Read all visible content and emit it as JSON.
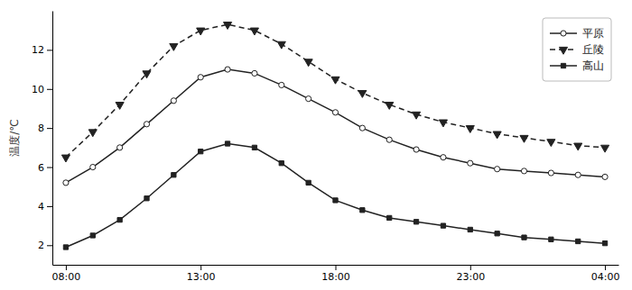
{
  "chart_data": {
    "type": "line",
    "ylabel": "温度/℃",
    "x": [
      0,
      1,
      2,
      3,
      4,
      5,
      6,
      7,
      8,
      9,
      10,
      11,
      12,
      13,
      14,
      15,
      16,
      17,
      18,
      19,
      20
    ],
    "xlim": [
      -0.5,
      20.5
    ],
    "xticks": [
      {
        "value": 0,
        "label": "08:00"
      },
      {
        "value": 5,
        "label": "13:00"
      },
      {
        "value": 10,
        "label": "18:00"
      },
      {
        "value": 15,
        "label": "23:00"
      },
      {
        "value": 20,
        "label": "04:00"
      }
    ],
    "ylim": [
      1,
      14
    ],
    "yticks": [
      2,
      4,
      6,
      8,
      10,
      12
    ],
    "grid": false,
    "legend": "upper right",
    "series": [
      {
        "name": "平原",
        "color": "#222222",
        "marker": "circle-open",
        "line_style": "solid",
        "values": [
          5.2,
          6.0,
          7.0,
          8.2,
          9.4,
          10.6,
          11.0,
          10.8,
          10.2,
          9.5,
          8.8,
          8.0,
          7.4,
          6.9,
          6.5,
          6.2,
          5.9,
          5.8,
          5.7,
          5.6,
          5.5
        ]
      },
      {
        "name": "丘陵",
        "color": "#222222",
        "marker": "triangle-down",
        "line_style": "dashed",
        "values": [
          6.5,
          7.8,
          9.2,
          10.8,
          12.2,
          13.0,
          13.3,
          13.0,
          12.3,
          11.4,
          10.5,
          9.8,
          9.2,
          8.7,
          8.3,
          8.0,
          7.7,
          7.5,
          7.3,
          7.1,
          7.0
        ]
      },
      {
        "name": "高山",
        "color": "#222222",
        "marker": "square",
        "line_style": "solid",
        "values": [
          1.9,
          2.5,
          3.3,
          4.4,
          5.6,
          6.8,
          7.2,
          7.0,
          6.2,
          5.2,
          4.3,
          3.8,
          3.4,
          3.2,
          3.0,
          2.8,
          2.6,
          2.4,
          2.3,
          2.2,
          2.1
        ]
      }
    ]
  }
}
